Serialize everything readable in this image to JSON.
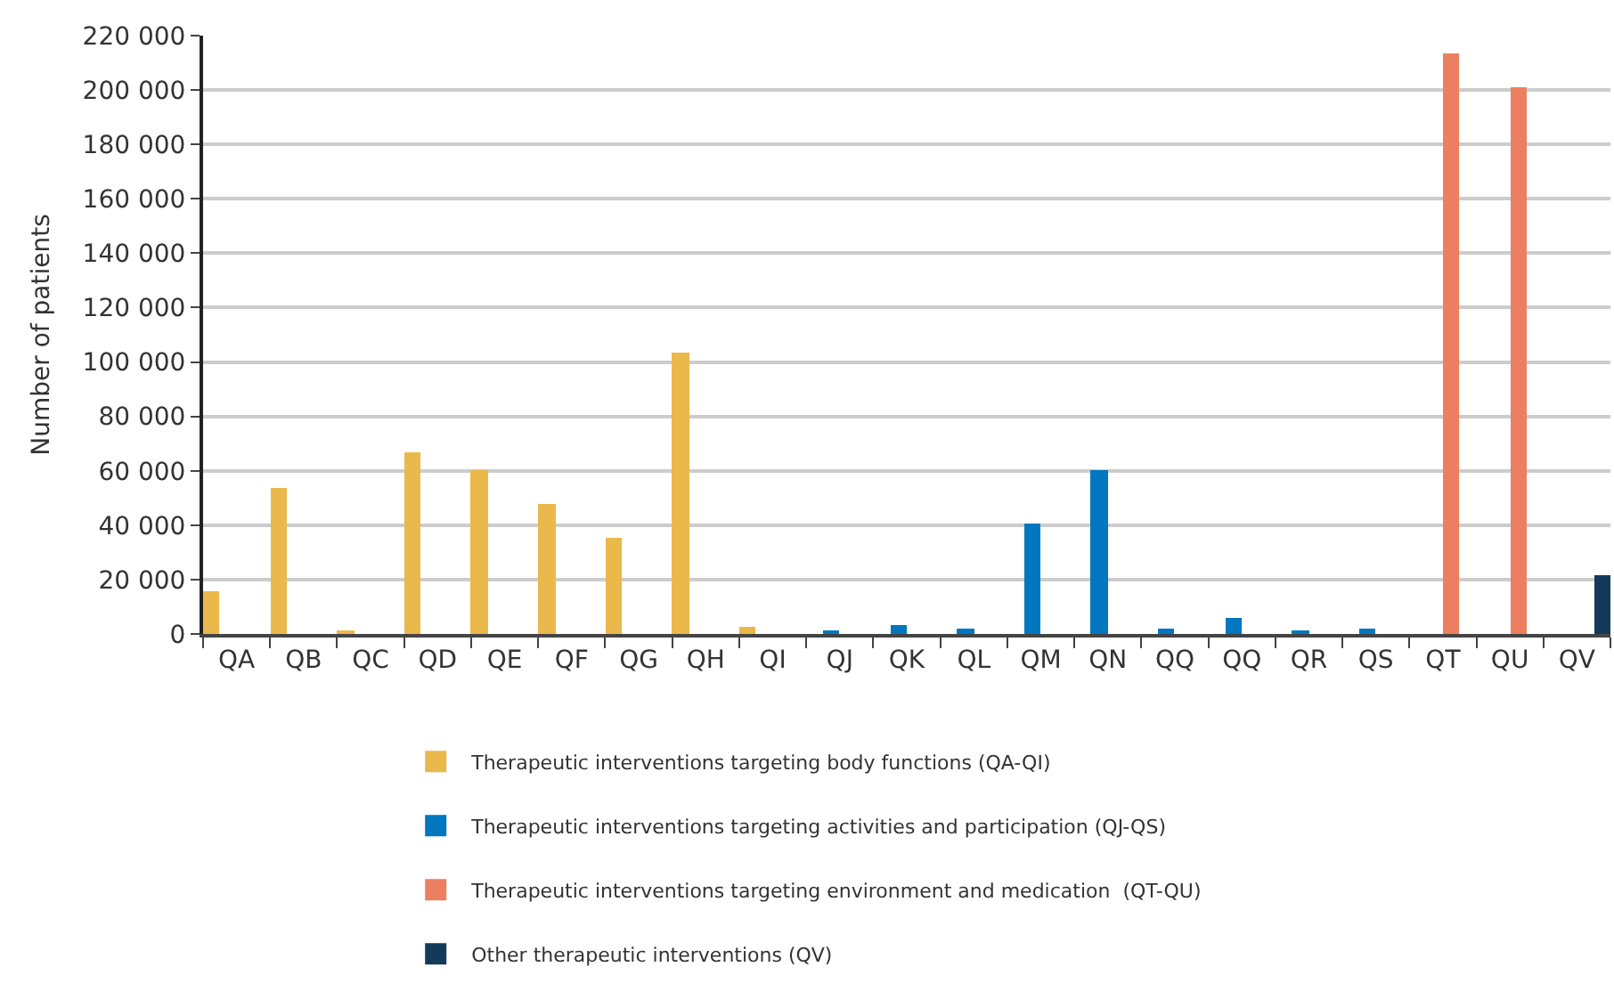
{
  "chart_data": {
    "type": "bar",
    "ylabel": "Number of patients",
    "categories": [
      "QA",
      "QB",
      "QC",
      "QD",
      "QE",
      "QF",
      "QG",
      "QH",
      "QI",
      "QJ",
      "QK",
      "QL",
      "QM",
      "QN",
      "QQ",
      "QQ",
      "QR",
      "QS",
      "QT",
      "QU",
      "QV"
    ],
    "series": [
      {
        "name": "Therapeutic interventions targeting body functions (QA-QI)",
        "color": "#ebb84c",
        "values": [
          16000,
          54000,
          1000,
          66500,
          60400,
          47600,
          35500,
          103700,
          2300,
          null,
          null,
          null,
          null,
          null,
          null,
          null,
          null,
          null,
          null,
          null,
          null
        ]
      },
      {
        "name": "Therapeutic interventions targeting activities and participation (QJ-QS)",
        "color": "#0077be",
        "values": [
          null,
          null,
          null,
          null,
          null,
          null,
          null,
          null,
          null,
          1000,
          3600,
          1700,
          40600,
          60400,
          2100,
          6200,
          1000,
          1700,
          null,
          null,
          null
        ]
      },
      {
        "name": "Therapeutic interventions targeting environment and medication  (QT-QU)",
        "color": "#eb7f5f",
        "values": [
          null,
          null,
          null,
          null,
          null,
          null,
          null,
          null,
          null,
          null,
          null,
          null,
          null,
          null,
          null,
          null,
          null,
          null,
          213200,
          201300,
          null
        ]
      },
      {
        "name": "Other therapeutic interventions (QV)",
        "color": "#143a5a",
        "values": [
          null,
          null,
          null,
          null,
          null,
          null,
          null,
          null,
          null,
          null,
          null,
          null,
          null,
          null,
          null,
          null,
          null,
          null,
          null,
          null,
          21700
        ]
      }
    ],
    "ylim": [
      0,
      220000
    ],
    "yticks": [
      0,
      {
        "value": 20000,
        "label": "20 000"
      },
      {
        "value": 40000,
        "label": "40 000"
      },
      {
        "value": 60000,
        "label": "60 000"
      },
      {
        "value": 80000,
        "label": "80 000"
      },
      {
        "value": 100000,
        "label": "100 000"
      },
      {
        "value": 120000,
        "label": "120 000"
      },
      {
        "value": 140000,
        "label": "140 000"
      },
      {
        "value": 160000,
        "label": "160 000"
      },
      {
        "value": 180000,
        "label": "180 000"
      },
      {
        "value": 200000,
        "label": "200 000"
      },
      {
        "value": 220000,
        "label": "220 000"
      }
    ],
    "grid": "y",
    "legend": "bottom"
  }
}
